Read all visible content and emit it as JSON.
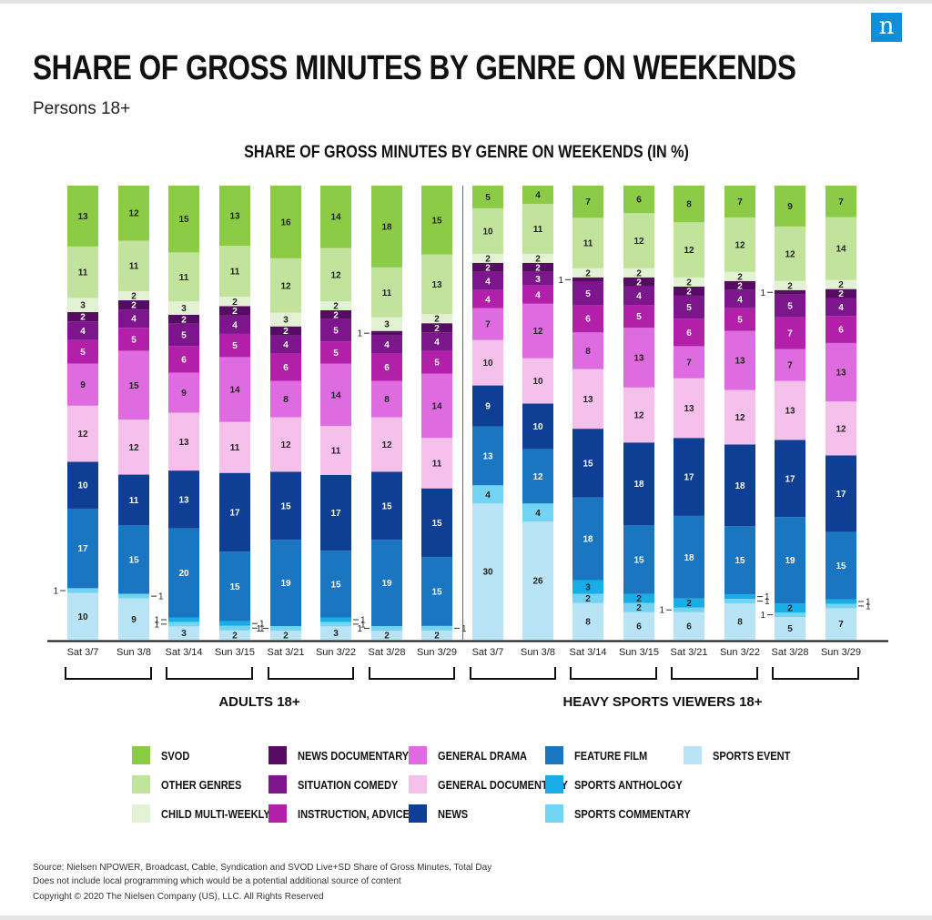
{
  "brand": {
    "logo_letter": "n",
    "logo_color": "#0e8fdc"
  },
  "header": {
    "title": "SHARE OF GROSS MINUTES BY GENRE ON WEEKENDS",
    "subtitle": "Persons 18+"
  },
  "chart_data": {
    "type": "bar",
    "stacked": true,
    "title": "SHARE OF GROSS MINUTES BY GENRE ON WEEKENDS (IN %)",
    "categories": [
      "Sat 3/7",
      "Sun 3/8",
      "Sat 3/14",
      "Sun 3/15",
      "Sat 3/21",
      "Sun 3/22",
      "Sat 3/28",
      "Sun 3/29",
      "Sat 3/7",
      "Sun 3/8",
      "Sat 3/14",
      "Sun 3/15",
      "Sat 3/21",
      "Sun 3/22",
      "Sat 3/28",
      "Sun 3/29"
    ],
    "groups": [
      {
        "label": "ADULTS 18+",
        "category_indices": [
          0,
          1,
          2,
          3,
          4,
          5,
          6,
          7
        ]
      },
      {
        "label": "HEAVY SPORTS VIEWERS 18+",
        "category_indices": [
          8,
          9,
          10,
          11,
          12,
          13,
          14,
          15
        ]
      }
    ],
    "series": [
      {
        "name": "SPORTS EVENT",
        "color": "#b9e4f5",
        "values": [
          10,
          9,
          3,
          2,
          2,
          3,
          2,
          2,
          30,
          26,
          8,
          6,
          6,
          8,
          5,
          7
        ]
      },
      {
        "name": "SPORTS COMMENTARY",
        "color": "#72d3f2",
        "values": [
          1,
          1,
          1,
          1,
          1,
          1,
          1,
          1,
          4,
          4,
          2,
          2,
          1,
          1,
          1,
          1
        ]
      },
      {
        "name": "SPORTS ANTHOLOGY",
        "color": "#19ade8",
        "values": [
          0,
          0,
          1,
          1,
          0,
          1,
          0,
          0,
          0,
          0,
          3,
          2,
          2,
          1,
          2,
          1
        ]
      },
      {
        "name": "FEATURE FILM",
        "color": "#1b76c2",
        "values": [
          17,
          15,
          20,
          15,
          19,
          15,
          19,
          15,
          13,
          12,
          18,
          15,
          18,
          15,
          19,
          15
        ]
      },
      {
        "name": "NEWS",
        "color": "#0f3f94",
        "values": [
          10,
          11,
          13,
          17,
          15,
          17,
          15,
          15,
          9,
          10,
          15,
          18,
          17,
          18,
          17,
          17
        ]
      },
      {
        "name": "GENERAL DOCUMENTARY",
        "color": "#f5c0ec",
        "values": [
          12,
          12,
          13,
          11,
          12,
          11,
          12,
          11,
          10,
          10,
          13,
          12,
          13,
          12,
          13,
          12
        ]
      },
      {
        "name": "GENERAL DRAMA",
        "color": "#de6be0",
        "values": [
          9,
          15,
          9,
          14,
          8,
          14,
          8,
          14,
          7,
          12,
          8,
          13,
          7,
          13,
          7,
          13
        ]
      },
      {
        "name": "INSTRUCTION, ADVICE",
        "color": "#b21fa8",
        "values": [
          5,
          5,
          6,
          5,
          6,
          5,
          6,
          5,
          4,
          4,
          6,
          5,
          6,
          5,
          7,
          6
        ]
      },
      {
        "name": "SITUATION COMEDY",
        "color": "#7d168c",
        "values": [
          4,
          4,
          5,
          4,
          4,
          5,
          4,
          4,
          4,
          3,
          5,
          4,
          5,
          4,
          5,
          4
        ]
      },
      {
        "name": "NEWS DOCUMENTARY",
        "color": "#560c62",
        "values": [
          2,
          2,
          2,
          2,
          2,
          2,
          1,
          2,
          2,
          2,
          1,
          2,
          2,
          2,
          1,
          2
        ]
      },
      {
        "name": "CHILD MULTI-WEEKLY",
        "color": "#e2f2d2",
        "values": [
          3,
          2,
          3,
          2,
          3,
          2,
          3,
          2,
          2,
          2,
          2,
          2,
          2,
          2,
          2,
          2
        ]
      },
      {
        "name": "OTHER GENRES",
        "color": "#c1e39c",
        "values": [
          11,
          11,
          11,
          11,
          12,
          12,
          11,
          13,
          10,
          11,
          11,
          12,
          12,
          12,
          12,
          14
        ]
      },
      {
        "name": "SVOD",
        "color": "#8bcb45",
        "values": [
          13,
          12,
          15,
          13,
          16,
          14,
          18,
          15,
          5,
          4,
          7,
          6,
          8,
          7,
          9,
          7
        ]
      }
    ],
    "ylim": [
      0,
      100
    ],
    "legend": "bottom"
  },
  "legend": {
    "columns": [
      [
        "SVOD",
        "OTHER GENRES",
        "CHILD MULTI-WEEKLY"
      ],
      [
        "NEWS DOCUMENTARY",
        "SITUATION COMEDY",
        "INSTRUCTION, ADVICE"
      ],
      [
        "GENERAL DRAMA",
        "GENERAL DOCUMENTARY",
        "NEWS"
      ],
      [
        "FEATURE FILM",
        "SPORTS ANTHOLOGY",
        "SPORTS COMMENTARY"
      ],
      [
        "SPORTS EVENT"
      ]
    ]
  },
  "footer": {
    "source_line1": "Source: Nielsen NPOWER, Broadcast, Cable, Syndication and SVOD Live+SD Share of Gross Minutes, Total Day",
    "source_line2": "Does not include local programming which would be a potential additional source of content",
    "copyright": "Copyright © 2020 The Nielsen Company (US), LLC. All Rights Reserved"
  }
}
